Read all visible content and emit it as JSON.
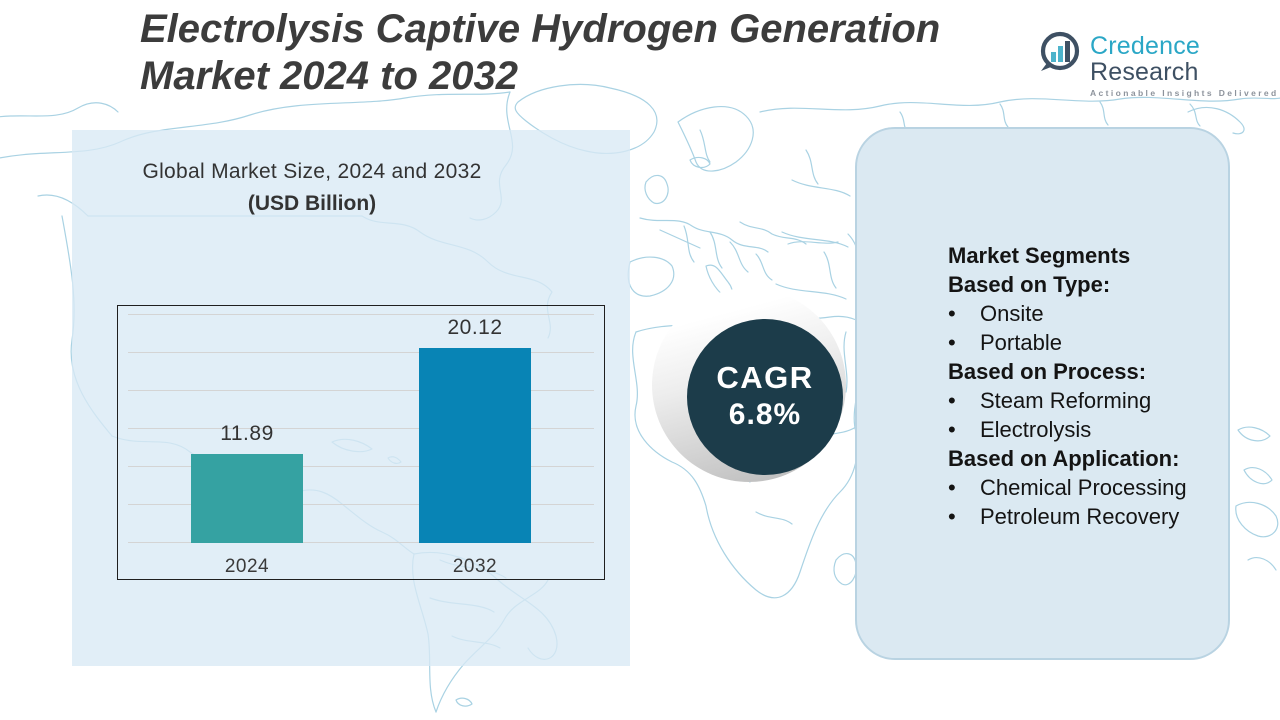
{
  "page": {
    "title_line1": "Electrolysis Captive Hydrogen Generation",
    "title_line2": "Market 2024 to 2032"
  },
  "logo": {
    "name_primary": "Credence",
    "name_secondary": "Research",
    "tagline": "Actionable Insights Delivered"
  },
  "chart_data": {
    "type": "bar",
    "title_line1": "Global Market Size, 2024 and 2032",
    "title_line2": "(USD Billion)",
    "categories": [
      "2024",
      "2032"
    ],
    "values": [
      11.89,
      20.12
    ],
    "labels": [
      "11.89",
      "20.12"
    ],
    "colors": [
      "#35a2a2",
      "#0884b5"
    ],
    "ylim": [
      5,
      23
    ],
    "grid": true,
    "legend": false,
    "ylabel": "",
    "xlabel": ""
  },
  "cagr": {
    "label": "CAGR",
    "value": "6.8%"
  },
  "segments": {
    "heading": "Market Segments",
    "groups": [
      {
        "title": "Based on Type:",
        "items": [
          "Onsite",
          "Portable"
        ]
      },
      {
        "title": "Based on Process:",
        "items": [
          "Steam Reforming",
          "Electrolysis"
        ]
      },
      {
        "title": "Based on Application:",
        "items": [
          "Chemical Processing",
          "Petroleum Recovery"
        ]
      }
    ]
  },
  "colors": {
    "bar_2024": "#35a2a2",
    "bar_2032": "#0884b5",
    "cagr_circle": "#1c3c4a",
    "panel_left": "#e2eff7",
    "panel_right": "#dbe9f2",
    "map_stroke": "#a9d2e3",
    "brand_teal": "#2ba7c6",
    "brand_dark": "#3e5063",
    "title_text": "#3c3c3c"
  }
}
